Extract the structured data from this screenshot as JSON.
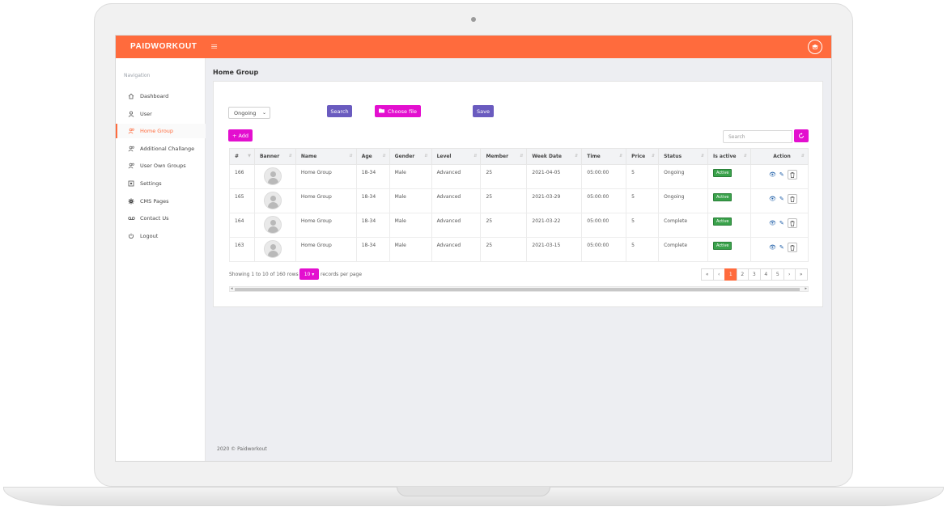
{
  "app": {
    "brand": "PAIDWORKOUT",
    "menu_glyph": "≡"
  },
  "colors": {
    "accent": "#ff6b3d",
    "purple": "#6a5bbf",
    "magenta": "#e30fcf",
    "active_badge": "#3aa24b"
  },
  "sidebar": {
    "heading": "Navigation",
    "items": [
      {
        "label": "Dashboard",
        "icon": "home-icon",
        "active": false
      },
      {
        "label": "User",
        "icon": "user-icon",
        "active": false
      },
      {
        "label": "Home Group",
        "icon": "group-icon",
        "active": true
      },
      {
        "label": "Additional Challange",
        "icon": "group-icon",
        "active": false
      },
      {
        "label": "User Own Groups",
        "icon": "group-icon",
        "active": false
      },
      {
        "label": "Settings",
        "icon": "settings-icon",
        "active": false
      },
      {
        "label": "CMS Pages",
        "icon": "gear-icon",
        "active": false
      },
      {
        "label": "Contact Us",
        "icon": "voicemail-icon",
        "active": false
      },
      {
        "label": "Logout",
        "icon": "power-icon",
        "active": false
      }
    ]
  },
  "page": {
    "title": "Home Group"
  },
  "toolbar": {
    "status_value": "Ongoing",
    "search_label": "Search",
    "choose_file_label": "Choose file",
    "save_label": "Save",
    "add_label": "+ Add",
    "search_placeholder": "Search"
  },
  "table": {
    "headers": [
      "#",
      "Banner",
      "Name",
      "Age",
      "Gender",
      "Level",
      "Member",
      "Week Date",
      "Time",
      "Price",
      "Status",
      "Is active",
      "Action"
    ],
    "rows": [
      {
        "id": "166",
        "name": "Home Group",
        "age": "18-34",
        "gender": "Male",
        "level": "Advanced",
        "member": "25",
        "week_date": "2021-04-05",
        "time": "05:00:00",
        "price": "5",
        "status": "Ongoing",
        "active": "Active"
      },
      {
        "id": "165",
        "name": "Home Group",
        "age": "18-34",
        "gender": "Male",
        "level": "Advanced",
        "member": "25",
        "week_date": "2021-03-29",
        "time": "05:00:00",
        "price": "5",
        "status": "Ongoing",
        "active": "Active"
      },
      {
        "id": "164",
        "name": "Home Group",
        "age": "18-34",
        "gender": "Male",
        "level": "Advanced",
        "member": "25",
        "week_date": "2021-03-22",
        "time": "05:00:00",
        "price": "5",
        "status": "Complete",
        "active": "Active"
      },
      {
        "id": "163",
        "name": "Home Group",
        "age": "18-34",
        "gender": "Male",
        "level": "Advanced",
        "member": "25",
        "week_date": "2021-03-15",
        "time": "05:00:00",
        "price": "5",
        "status": "Complete",
        "active": "Active"
      }
    ]
  },
  "pagination": {
    "showing": "Showing 1 to 10 of 160 rows",
    "rows_per_page": "10 ▾",
    "records_label": "records per page",
    "pages": [
      "«",
      "‹",
      "1",
      "2",
      "3",
      "4",
      "5",
      "›",
      "»"
    ],
    "active_page": "1"
  },
  "footer": {
    "text": "2020 © Paidworkout"
  }
}
